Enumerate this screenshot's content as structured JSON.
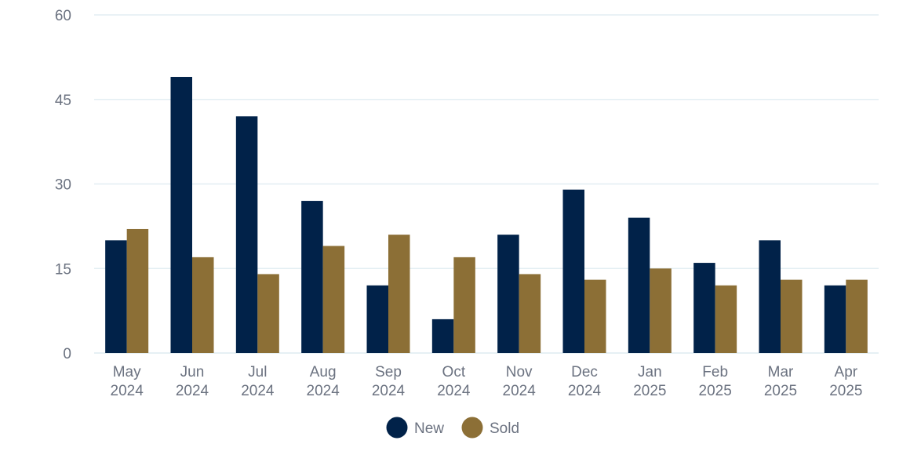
{
  "chart_data": {
    "type": "bar",
    "title": "",
    "xlabel": "",
    "ylabel": "",
    "categories": [
      [
        "May",
        "2024"
      ],
      [
        "Jun",
        "2024"
      ],
      [
        "Jul",
        "2024"
      ],
      [
        "Aug",
        "2024"
      ],
      [
        "Sep",
        "2024"
      ],
      [
        "Oct",
        "2024"
      ],
      [
        "Nov",
        "2024"
      ],
      [
        "Dec",
        "2024"
      ],
      [
        "Jan",
        "2025"
      ],
      [
        "Feb",
        "2025"
      ],
      [
        "Mar",
        "2025"
      ],
      [
        "Apr",
        "2025"
      ]
    ],
    "series": [
      {
        "name": "New",
        "color": "#012249",
        "values": [
          20,
          49,
          42,
          27,
          12,
          6,
          21,
          29,
          24,
          16,
          20,
          12
        ]
      },
      {
        "name": "Sold",
        "color": "#8c6f36",
        "values": [
          22,
          17,
          14,
          19,
          21,
          17,
          14,
          13,
          15,
          12,
          13,
          13
        ]
      }
    ],
    "ylim": [
      0,
      60
    ],
    "yticks": [
      "0",
      "15",
      "30",
      "45",
      "60"
    ],
    "grid": true,
    "legend_position": "bottom-center",
    "grid_color": "#e3eef3"
  }
}
